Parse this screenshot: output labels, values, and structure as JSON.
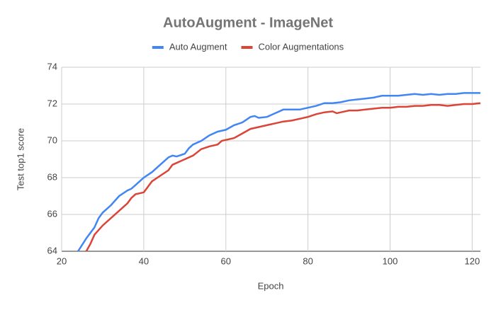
{
  "chart_data": {
    "type": "line",
    "title": "AutoAugment - ImageNet",
    "x_label": "Epoch",
    "y_label": "Test top1 score",
    "xlim": [
      20,
      122
    ],
    "ylim": [
      64,
      74
    ],
    "xticks": [
      20,
      40,
      60,
      80,
      100,
      120
    ],
    "yticks": [
      64,
      66,
      68,
      70,
      72,
      74
    ],
    "grid": true,
    "legend": "top",
    "series": [
      {
        "name": "Auto Augment",
        "color": "#4285f4",
        "x": [
          24,
          26,
          28,
          29,
          30,
          32,
          34,
          36,
          37,
          38,
          40,
          42,
          44,
          46,
          47,
          48,
          50,
          51,
          52,
          54,
          56,
          58,
          60,
          62,
          64,
          66,
          67,
          68,
          70,
          72,
          74,
          76,
          78,
          80,
          82,
          84,
          86,
          88,
          90,
          92,
          94,
          96,
          98,
          100,
          102,
          104,
          106,
          108,
          110,
          112,
          114,
          116,
          118,
          120,
          122
        ],
        "values": [
          64.0,
          64.7,
          65.3,
          65.8,
          66.1,
          66.5,
          67.0,
          67.3,
          67.4,
          67.6,
          68.0,
          68.3,
          68.7,
          69.1,
          69.2,
          69.15,
          69.3,
          69.6,
          69.8,
          70.0,
          70.3,
          70.5,
          70.6,
          70.85,
          71.0,
          71.3,
          71.35,
          71.25,
          71.3,
          71.5,
          71.7,
          71.7,
          71.7,
          71.8,
          71.9,
          72.05,
          72.05,
          72.1,
          72.2,
          72.25,
          72.3,
          72.35,
          72.45,
          72.45,
          72.45,
          72.5,
          72.55,
          72.5,
          72.55,
          72.5,
          72.55,
          72.55,
          72.6,
          72.6,
          72.6
        ]
      },
      {
        "name": "Color Augmentations",
        "color": "#db4437",
        "x": [
          26,
          27,
          28,
          30,
          32,
          34,
          36,
          37,
          38,
          40,
          41,
          42,
          44,
          46,
          47,
          48,
          50,
          52,
          54,
          56,
          58,
          59,
          60,
          62,
          64,
          66,
          68,
          70,
          72,
          74,
          76,
          78,
          80,
          82,
          84,
          86,
          87,
          88,
          90,
          92,
          94,
          96,
          98,
          100,
          102,
          104,
          106,
          108,
          110,
          112,
          114,
          116,
          118,
          120,
          122
        ],
        "values": [
          64.0,
          64.4,
          64.9,
          65.4,
          65.8,
          66.2,
          66.6,
          66.9,
          67.1,
          67.2,
          67.5,
          67.8,
          68.1,
          68.4,
          68.7,
          68.8,
          69.0,
          69.2,
          69.55,
          69.7,
          69.8,
          70.0,
          70.05,
          70.15,
          70.4,
          70.65,
          70.75,
          70.85,
          70.95,
          71.05,
          71.1,
          71.2,
          71.3,
          71.45,
          71.55,
          71.6,
          71.5,
          71.55,
          71.65,
          71.65,
          71.7,
          71.75,
          71.8,
          71.8,
          71.85,
          71.85,
          71.9,
          71.9,
          71.95,
          71.95,
          71.9,
          71.95,
          72.0,
          72.0,
          72.05
        ]
      }
    ]
  }
}
